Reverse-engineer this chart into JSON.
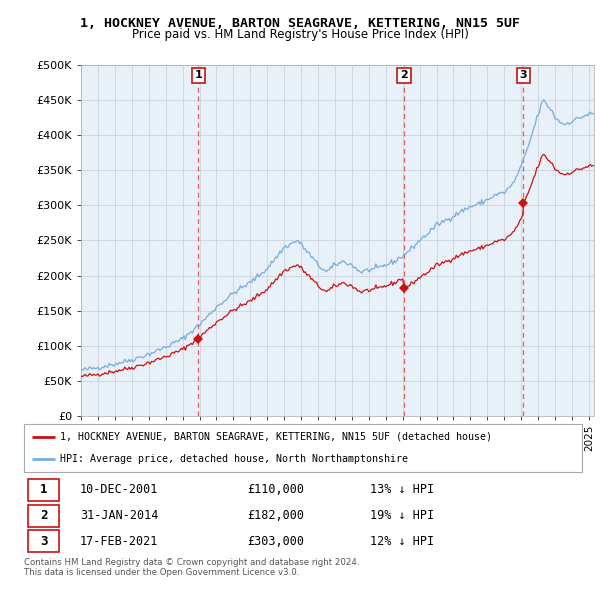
{
  "title": "1, HOCKNEY AVENUE, BARTON SEAGRAVE, KETTERING, NN15 5UF",
  "subtitle": "Price paid vs. HM Land Registry's House Price Index (HPI)",
  "ylabel_ticks": [
    "£0",
    "£50K",
    "£100K",
    "£150K",
    "£200K",
    "£250K",
    "£300K",
    "£350K",
    "£400K",
    "£450K",
    "£500K"
  ],
  "ytick_values": [
    0,
    50000,
    100000,
    150000,
    200000,
    250000,
    300000,
    350000,
    400000,
    450000,
    500000
  ],
  "ylim": [
    0,
    500000
  ],
  "xlim_start": 1995.0,
  "xlim_end": 2025.3,
  "sale_dates": [
    2001.94,
    2014.08,
    2021.13
  ],
  "sale_prices": [
    110000,
    182000,
    303000
  ],
  "sale_labels": [
    "1",
    "2",
    "3"
  ],
  "legend_label_red": "1, HOCKNEY AVENUE, BARTON SEAGRAVE, KETTERING, NN15 5UF (detached house)",
  "legend_label_blue": "HPI: Average price, detached house, North Northamptonshire",
  "table_data": [
    [
      "1",
      "10-DEC-2001",
      "£110,000",
      "13% ↓ HPI"
    ],
    [
      "2",
      "31-JAN-2014",
      "£182,000",
      "19% ↓ HPI"
    ],
    [
      "3",
      "17-FEB-2021",
      "£303,000",
      "12% ↓ HPI"
    ]
  ],
  "footer": "Contains HM Land Registry data © Crown copyright and database right 2024.\nThis data is licensed under the Open Government Licence v3.0.",
  "hpi_color": "#7aabe0",
  "price_color": "#cc1111",
  "vline_color": "#e06060",
  "plot_bg_color": "#e8f0f8",
  "grid_color": "#c8d4e0",
  "title_fontsize": 9.5,
  "subtitle_fontsize": 8.5
}
